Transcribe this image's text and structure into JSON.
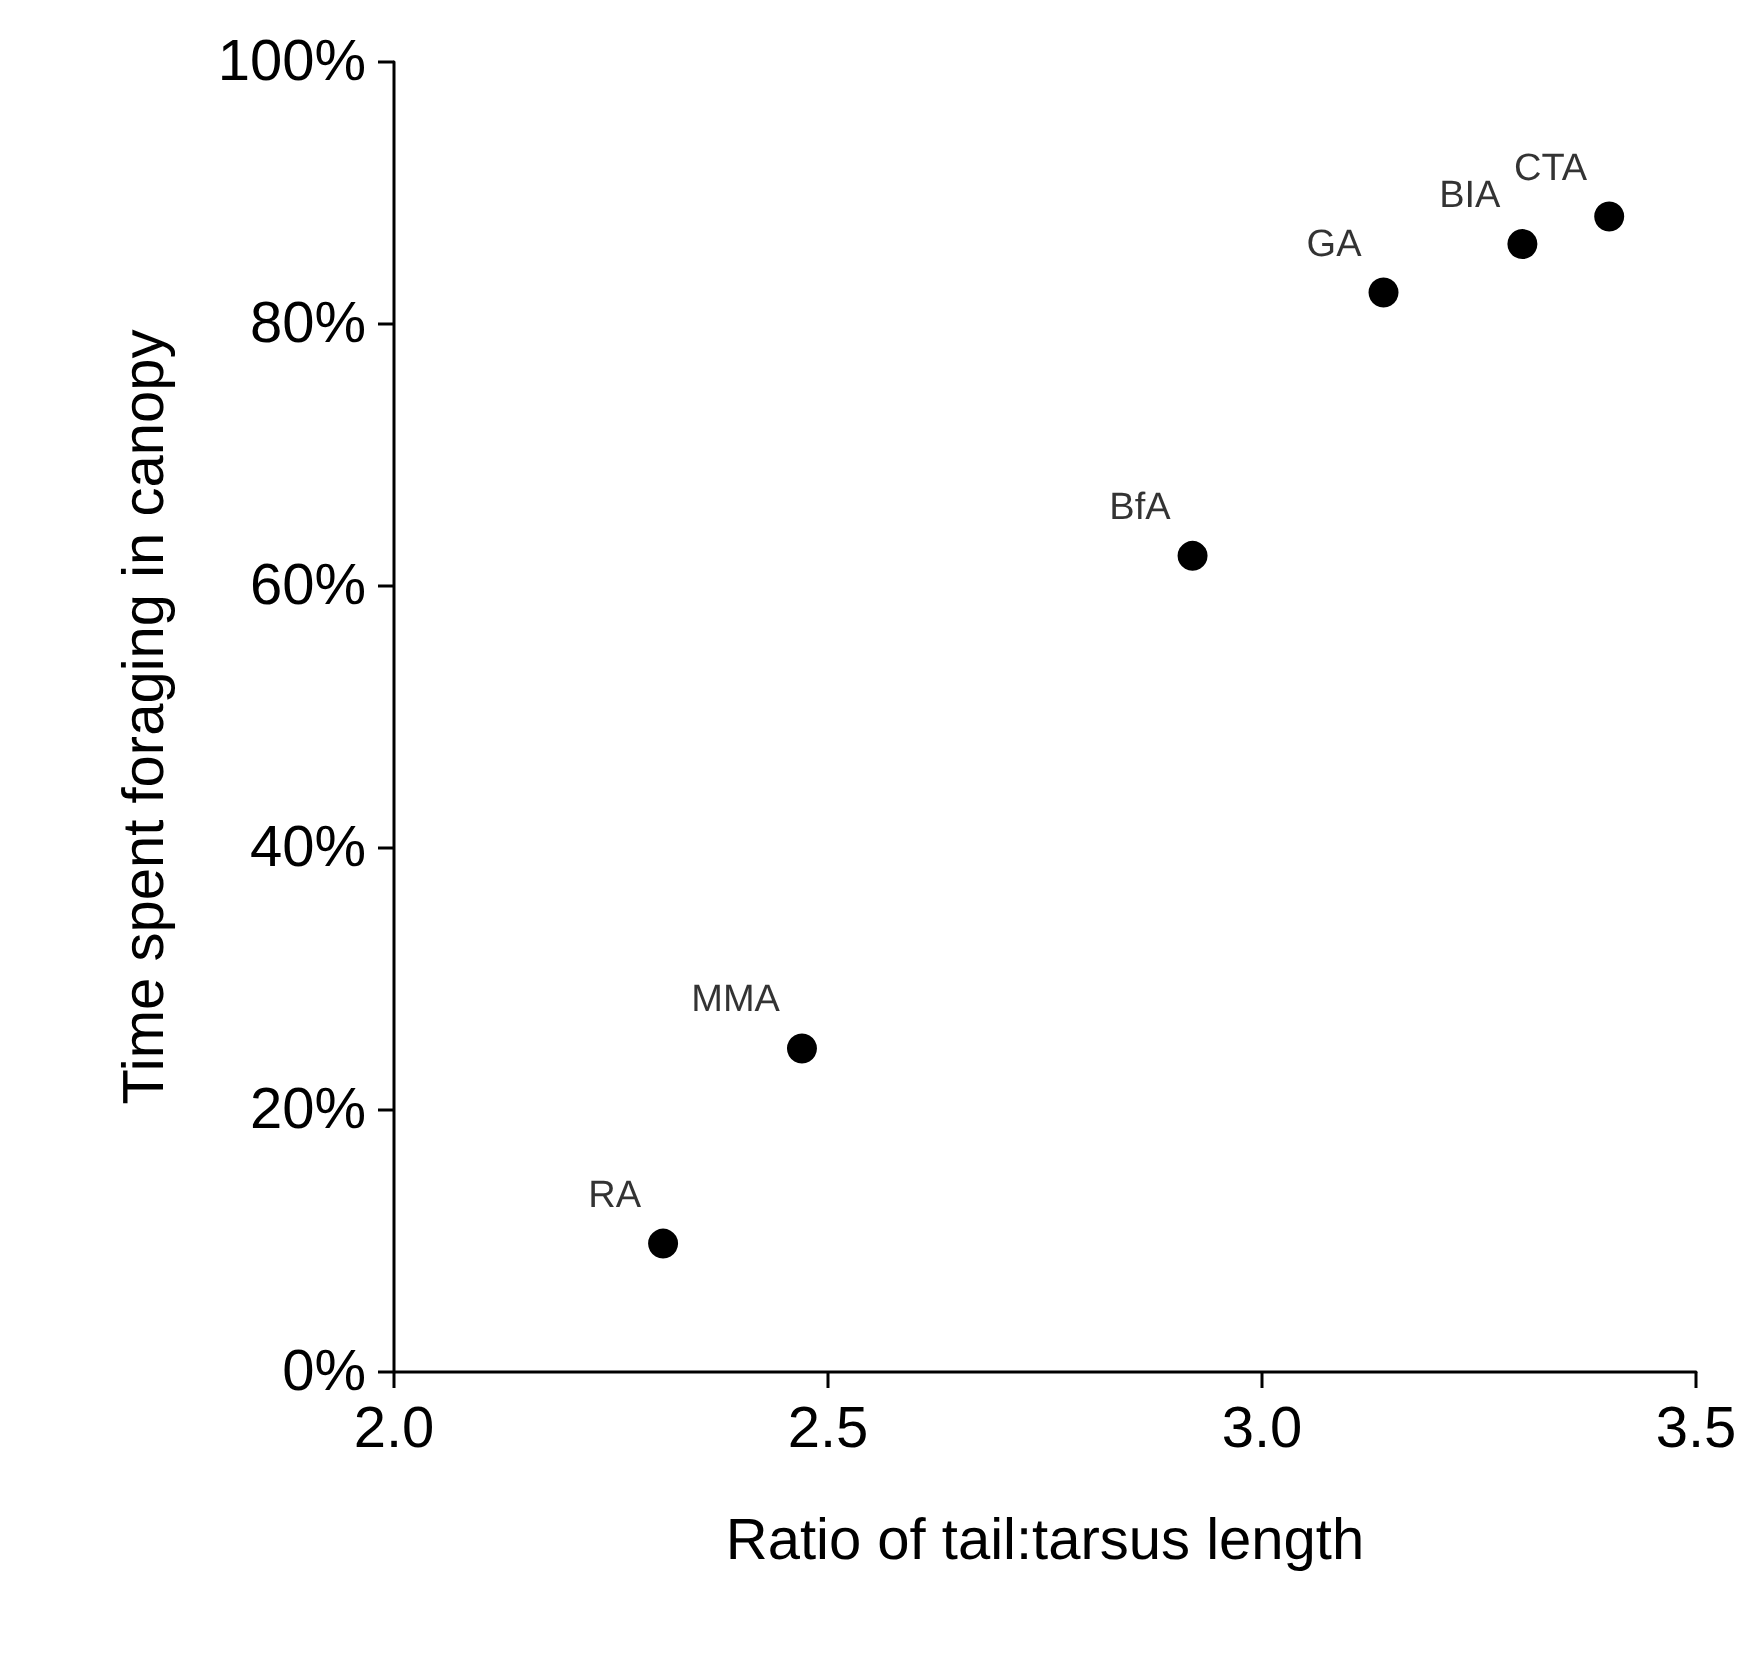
{
  "chart_data": {
    "type": "scatter",
    "xlabel": "Ratio of tail:tarsus length",
    "ylabel": "Time spent foraging in canopy",
    "x": [
      2.31,
      2.47,
      2.92,
      3.14,
      3.3,
      3.4
    ],
    "values": [
      9.8,
      24.7,
      62.3,
      82.4,
      86.1,
      88.2
    ],
    "color": "#000000",
    "marker": "circle",
    "grid": false,
    "xlim": [
      2,
      3.5
    ],
    "xticks": [
      {
        "value": 2,
        "label": "2.0"
      },
      {
        "value": 2.5,
        "label": "2.5"
      },
      {
        "value": 3,
        "label": "3.0"
      },
      {
        "value": 3.5,
        "label": "3.5"
      }
    ],
    "ylim": [
      0,
      100
    ],
    "yticks": [
      {
        "value": 0,
        "label": "0%"
      },
      {
        "value": 20,
        "label": "20%"
      },
      {
        "value": 40,
        "label": "40%"
      },
      {
        "value": 60,
        "label": "60%"
      },
      {
        "value": 80,
        "label": "80%"
      },
      {
        "value": 100,
        "label": "100%"
      }
    ],
    "annotations": [
      {
        "text": "RA",
        "x": 2.31,
        "y": 9.8
      },
      {
        "text": "MMA",
        "x": 2.47,
        "y": 24.7
      },
      {
        "text": "BfA",
        "x": 2.92,
        "y": 62.3
      },
      {
        "text": "GA",
        "x": 3.14,
        "y": 82.4
      },
      {
        "text": "BIA",
        "x": 3.3,
        "y": 86.1
      },
      {
        "text": "CTA",
        "x": 3.4,
        "y": 88.2
      }
    ]
  }
}
